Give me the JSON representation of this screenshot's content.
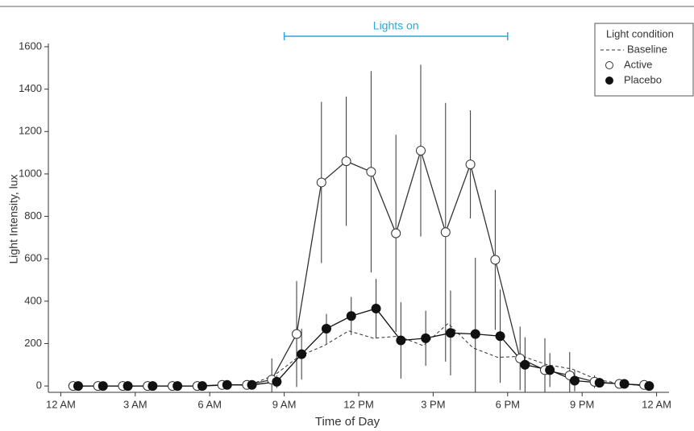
{
  "chart_data": {
    "type": "line",
    "x_label": "Time of Day",
    "y_label": "Light Intensity, lux",
    "xlim": [
      -0.5,
      24.5
    ],
    "ylim": [
      -30,
      1600
    ],
    "xticks": [
      {
        "value": 0,
        "label": "12 AM"
      },
      {
        "value": 3,
        "label": "3 AM"
      },
      {
        "value": 6,
        "label": "6 AM"
      },
      {
        "value": 9,
        "label": "9 AM"
      },
      {
        "value": 12,
        "label": "12 PM"
      },
      {
        "value": 15,
        "label": "3 PM"
      },
      {
        "value": 18,
        "label": "6 PM"
      },
      {
        "value": 21,
        "label": "9 PM"
      },
      {
        "value": 24,
        "label": "12 AM"
      }
    ],
    "yticks": [
      0,
      200,
      400,
      600,
      800,
      1000,
      1200,
      1400,
      1600
    ],
    "annotation": {
      "label": "Lights on",
      "start": 9,
      "end": 18,
      "color": "#29a9e0"
    },
    "legend_title": "Light condition",
    "legend": "upper right",
    "series": [
      {
        "name": "Baseline",
        "color": "#333333",
        "style": "dashed",
        "marker": "none",
        "x": [
          0.6,
          1.6,
          2.6,
          3.6,
          4.6,
          5.6,
          6.6,
          7.6,
          8.6,
          9.6,
          10.6,
          11.6,
          12.6,
          13.6,
          14.6,
          15.6,
          16.6,
          17.6,
          18.6,
          19.6,
          20.6,
          21.6,
          22.6,
          23.6
        ],
        "values": [
          0,
          0,
          0,
          0,
          0,
          0,
          5,
          5,
          50,
          140,
          190,
          260,
          225,
          235,
          190,
          295,
          180,
          135,
          140,
          100,
          80,
          30,
          10,
          0
        ]
      },
      {
        "name": "Active",
        "color": "#333333",
        "style": "solid",
        "marker": "open",
        "x": [
          0.5,
          1.5,
          2.5,
          3.5,
          4.5,
          5.5,
          6.5,
          7.5,
          8.5,
          9.5,
          10.5,
          11.5,
          12.5,
          13.5,
          14.5,
          15.5,
          16.5,
          17.5,
          18.5,
          19.5,
          20.5,
          21.5,
          22.5,
          23.5
        ],
        "values": [
          0,
          0,
          0,
          0,
          0,
          0,
          5,
          5,
          30,
          245,
          960,
          1060,
          1010,
          720,
          1110,
          725,
          1045,
          595,
          130,
          75,
          50,
          20,
          10,
          5
        ],
        "errors": [
          0,
          0,
          0,
          0,
          0,
          0,
          0,
          0,
          100,
          250,
          380,
          305,
          475,
          465,
          405,
          610,
          255,
          330,
          150,
          150,
          110,
          30,
          10,
          5
        ]
      },
      {
        "name": "Placebo",
        "color": "#111111",
        "style": "solid",
        "marker": "filled",
        "x": [
          0.7,
          1.7,
          2.7,
          3.7,
          4.7,
          5.7,
          6.7,
          7.7,
          8.7,
          9.7,
          10.7,
          11.7,
          12.7,
          13.7,
          14.7,
          15.7,
          16.7,
          17.7,
          18.7,
          19.7,
          20.7,
          21.7,
          22.7,
          23.7
        ],
        "values": [
          0,
          0,
          0,
          0,
          0,
          0,
          5,
          5,
          20,
          150,
          270,
          330,
          365,
          215,
          225,
          250,
          245,
          235,
          100,
          75,
          25,
          15,
          10,
          0
        ],
        "errors": [
          0,
          0,
          0,
          0,
          0,
          0,
          0,
          0,
          30,
          120,
          70,
          90,
          140,
          180,
          130,
          200,
          360,
          220,
          130,
          80,
          50,
          20,
          10,
          0
        ]
      }
    ]
  }
}
